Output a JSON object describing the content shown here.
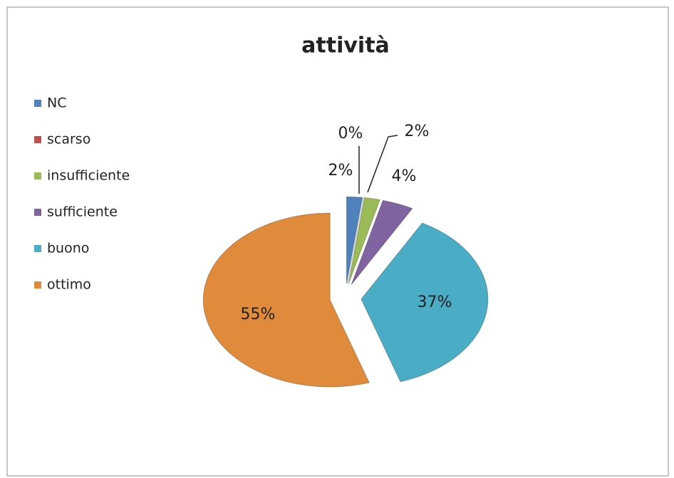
{
  "chart_data": {
    "type": "pie",
    "title": "attività",
    "categories": [
      "NC",
      "scarso",
      "insufficiente",
      "sufficiente",
      "buono",
      "ottimo"
    ],
    "values": [
      2,
      0,
      2,
      4,
      37,
      55
    ],
    "value_labels": [
      "2%",
      "0%",
      "2%",
      "4%",
      "37%",
      "55%"
    ],
    "colors": [
      "#4f81bd",
      "#c0504d",
      "#9bbb59",
      "#8064a2",
      "#4bacc6",
      "#e08a3c"
    ],
    "legend": "left"
  }
}
